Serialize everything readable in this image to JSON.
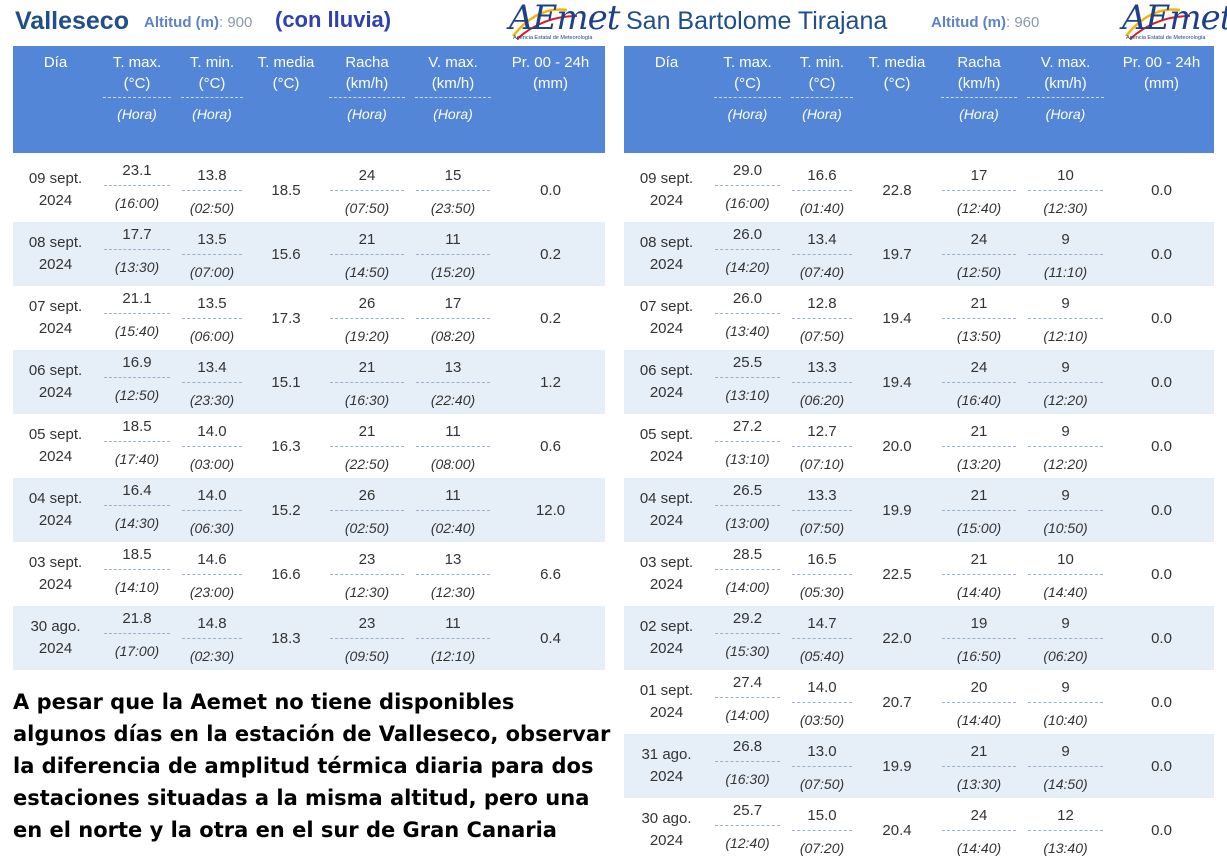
{
  "left": {
    "station": "Valleseco",
    "altitud_label": "Altitud (m)",
    "altitud_value": ": 900",
    "note": "(con lluvia)",
    "logo_text": "AEmet",
    "logo_sub": "Agencia Estatal de Meteorología",
    "headers": {
      "dia": "Día",
      "tmax": "T. max.",
      "tmax_unit": "(°C)",
      "tmin": "T. min.",
      "tmin_unit": "(°C)",
      "tmedia": "T. media",
      "tmedia_unit": "(°C)",
      "racha": "Racha",
      "racha_unit": "(km/h)",
      "vmax": "V. max.",
      "vmax_unit": "(km/h)",
      "pr": "Pr. 00 - 24h",
      "pr_unit": "(mm)",
      "hora": "(Hora)"
    },
    "rows": [
      {
        "dia1": "09 sept.",
        "dia2": "2024",
        "tmax": "23.1",
        "tmax_h": "(16:00)",
        "tmin": "13.8",
        "tmin_h": "(02:50)",
        "tmedia": "18.5",
        "racha": "24",
        "racha_h": "(07:50)",
        "vmax": "15",
        "vmax_h": "(23:50)",
        "pr": "0.0"
      },
      {
        "dia1": "08 sept.",
        "dia2": "2024",
        "tmax": "17.7",
        "tmax_h": "(13:30)",
        "tmin": "13.5",
        "tmin_h": "(07:00)",
        "tmedia": "15.6",
        "racha": "21",
        "racha_h": "(14:50)",
        "vmax": "11",
        "vmax_h": "(15:20)",
        "pr": "0.2"
      },
      {
        "dia1": "07 sept.",
        "dia2": "2024",
        "tmax": "21.1",
        "tmax_h": "(15:40)",
        "tmin": "13.5",
        "tmin_h": "(06:00)",
        "tmedia": "17.3",
        "racha": "26",
        "racha_h": "(19:20)",
        "vmax": "17",
        "vmax_h": "(08:20)",
        "pr": "0.2"
      },
      {
        "dia1": "06 sept.",
        "dia2": "2024",
        "tmax": "16.9",
        "tmax_h": "(12:50)",
        "tmin": "13.4",
        "tmin_h": "(23:30)",
        "tmedia": "15.1",
        "racha": "21",
        "racha_h": "(16:30)",
        "vmax": "13",
        "vmax_h": "(22:40)",
        "pr": "1.2"
      },
      {
        "dia1": "05 sept.",
        "dia2": "2024",
        "tmax": "18.5",
        "tmax_h": "(17:40)",
        "tmin": "14.0",
        "tmin_h": "(03:00)",
        "tmedia": "16.3",
        "racha": "21",
        "racha_h": "(22:50)",
        "vmax": "11",
        "vmax_h": "(08:00)",
        "pr": "0.6"
      },
      {
        "dia1": "04 sept.",
        "dia2": "2024",
        "tmax": "16.4",
        "tmax_h": "(14:30)",
        "tmin": "14.0",
        "tmin_h": "(06:30)",
        "tmedia": "15.2",
        "racha": "26",
        "racha_h": "(02:50)",
        "vmax": "11",
        "vmax_h": "(02:40)",
        "pr": "12.0"
      },
      {
        "dia1": "03 sept.",
        "dia2": "2024",
        "tmax": "18.5",
        "tmax_h": "(14:10)",
        "tmin": "14.6",
        "tmin_h": "(23:00)",
        "tmedia": "16.6",
        "racha": "23",
        "racha_h": "(12:30)",
        "vmax": "13",
        "vmax_h": "(12:30)",
        "pr": "6.6"
      },
      {
        "dia1": "30 ago.",
        "dia2": "2024",
        "tmax": "21.8",
        "tmax_h": "(17:00)",
        "tmin": "14.8",
        "tmin_h": "(02:30)",
        "tmedia": "18.3",
        "racha": "23",
        "racha_h": "(09:50)",
        "vmax": "11",
        "vmax_h": "(12:10)",
        "pr": "0.4"
      }
    ]
  },
  "right": {
    "station": "San Bartolome Tirajana",
    "altitud_label": "Altitud (m)",
    "altitud_value": ": 960",
    "logo_text": "AEmet",
    "logo_sub": "Agencia Estatal de Meteorología",
    "headers": {
      "dia": "Día",
      "tmax": "T. max.",
      "tmax_unit": "(°C)",
      "tmin": "T. min.",
      "tmin_unit": "(°C)",
      "tmedia": "T. media",
      "tmedia_unit": "(°C)",
      "racha": "Racha",
      "racha_unit": "(km/h)",
      "vmax": "V. max.",
      "vmax_unit": "(km/h)",
      "pr": "Pr. 00 - 24h",
      "pr_unit": "(mm)",
      "hora": "(Hora)"
    },
    "rows": [
      {
        "dia1": "09 sept.",
        "dia2": "2024",
        "tmax": "29.0",
        "tmax_h": "(16:00)",
        "tmin": "16.6",
        "tmin_h": "(01:40)",
        "tmedia": "22.8",
        "racha": "17",
        "racha_h": "(12:40)",
        "vmax": "10",
        "vmax_h": "(12:30)",
        "pr": "0.0"
      },
      {
        "dia1": "08 sept.",
        "dia2": "2024",
        "tmax": "26.0",
        "tmax_h": "(14:20)",
        "tmin": "13.4",
        "tmin_h": "(07:40)",
        "tmedia": "19.7",
        "racha": "24",
        "racha_h": "(12:50)",
        "vmax": "9",
        "vmax_h": "(11:10)",
        "pr": "0.0"
      },
      {
        "dia1": "07 sept.",
        "dia2": "2024",
        "tmax": "26.0",
        "tmax_h": "(13:40)",
        "tmin": "12.8",
        "tmin_h": "(07:50)",
        "tmedia": "19.4",
        "racha": "21",
        "racha_h": "(13:50)",
        "vmax": "9",
        "vmax_h": "(12:10)",
        "pr": "0.0"
      },
      {
        "dia1": "06 sept.",
        "dia2": "2024",
        "tmax": "25.5",
        "tmax_h": "(13:10)",
        "tmin": "13.3",
        "tmin_h": "(06:20)",
        "tmedia": "19.4",
        "racha": "24",
        "racha_h": "(16:40)",
        "vmax": "9",
        "vmax_h": "(12:20)",
        "pr": "0.0"
      },
      {
        "dia1": "05 sept.",
        "dia2": "2024",
        "tmax": "27.2",
        "tmax_h": "(13:10)",
        "tmin": "12.7",
        "tmin_h": "(07:10)",
        "tmedia": "20.0",
        "racha": "21",
        "racha_h": "(13:20)",
        "vmax": "9",
        "vmax_h": "(12:20)",
        "pr": "0.0"
      },
      {
        "dia1": "04 sept.",
        "dia2": "2024",
        "tmax": "26.5",
        "tmax_h": "(13:00)",
        "tmin": "13.3",
        "tmin_h": "(07:50)",
        "tmedia": "19.9",
        "racha": "21",
        "racha_h": "(15:00)",
        "vmax": "9",
        "vmax_h": "(10:50)",
        "pr": "0.0"
      },
      {
        "dia1": "03 sept.",
        "dia2": "2024",
        "tmax": "28.5",
        "tmax_h": "(14:00)",
        "tmin": "16.5",
        "tmin_h": "(05:30)",
        "tmedia": "22.5",
        "racha": "21",
        "racha_h": "(14:40)",
        "vmax": "10",
        "vmax_h": "(14:40)",
        "pr": "0.0"
      },
      {
        "dia1": "02 sept.",
        "dia2": "2024",
        "tmax": "29.2",
        "tmax_h": "(15:30)",
        "tmin": "14.7",
        "tmin_h": "(05:40)",
        "tmedia": "22.0",
        "racha": "19",
        "racha_h": "(16:50)",
        "vmax": "9",
        "vmax_h": "(06:20)",
        "pr": "0.0"
      },
      {
        "dia1": "01 sept.",
        "dia2": "2024",
        "tmax": "27.4",
        "tmax_h": "(14:00)",
        "tmin": "14.0",
        "tmin_h": "(03:50)",
        "tmedia": "20.7",
        "racha": "20",
        "racha_h": "(14:40)",
        "vmax": "9",
        "vmax_h": "(10:40)",
        "pr": "0.0"
      },
      {
        "dia1": "31 ago.",
        "dia2": "2024",
        "tmax": "26.8",
        "tmax_h": "(16:30)",
        "tmin": "13.0",
        "tmin_h": "(07:50)",
        "tmedia": "19.9",
        "racha": "21",
        "racha_h": "(13:30)",
        "vmax": "9",
        "vmax_h": "(14:50)",
        "pr": "0.0"
      },
      {
        "dia1": "30 ago.",
        "dia2": "2024",
        "tmax": "25.7",
        "tmax_h": "(12:40)",
        "tmin": "15.0",
        "tmin_h": "(07:20)",
        "tmedia": "20.4",
        "racha": "24",
        "racha_h": "(14:40)",
        "vmax": "12",
        "vmax_h": "(13:40)",
        "pr": "0.0"
      }
    ]
  },
  "caption": "A pesar que la Aemet no tiene disponibles algunos días en la estación de Valleseco, observar la diferencia de amplitud térmica diaria para dos estaciones situadas a la misma altitud, pero una en el norte y la otra en el sur de Gran Canaria"
}
